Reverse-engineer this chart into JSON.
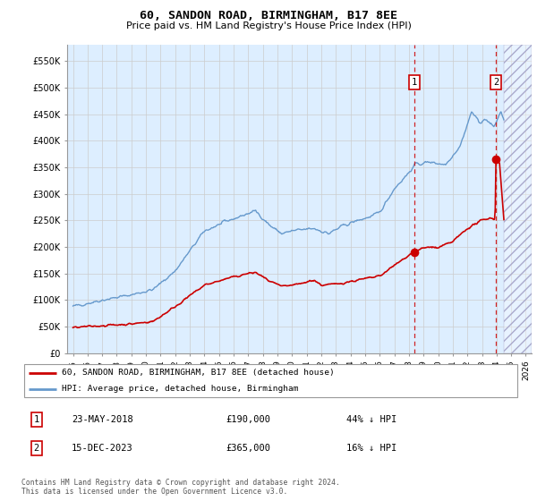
{
  "title": "60, SANDON ROAD, BIRMINGHAM, B17 8EE",
  "subtitle": "Price paid vs. HM Land Registry's House Price Index (HPI)",
  "ylim": [
    0,
    580000
  ],
  "yticks": [
    0,
    50000,
    100000,
    150000,
    200000,
    250000,
    300000,
    350000,
    400000,
    450000,
    500000,
    550000
  ],
  "ytick_labels": [
    "£0",
    "£50K",
    "£100K",
    "£150K",
    "£200K",
    "£250K",
    "£300K",
    "£350K",
    "£400K",
    "£450K",
    "£500K",
    "£550K"
  ],
  "xlim_start": 1994.6,
  "xlim_end": 2026.4,
  "xticks": [
    1995,
    1996,
    1997,
    1998,
    1999,
    2000,
    2001,
    2002,
    2003,
    2004,
    2005,
    2006,
    2007,
    2008,
    2009,
    2010,
    2011,
    2012,
    2013,
    2014,
    2015,
    2016,
    2017,
    2018,
    2019,
    2020,
    2021,
    2022,
    2023,
    2024,
    2025,
    2026
  ],
  "hpi_color": "#6699cc",
  "price_color": "#cc0000",
  "transaction1_date": "23-MAY-2018",
  "transaction1_price": 190000,
  "transaction1_pct": "44% ↓ HPI",
  "transaction1_year": 2018.38,
  "transaction2_date": "15-DEC-2023",
  "transaction2_price": 365000,
  "transaction2_pct": "16% ↓ HPI",
  "transaction2_year": 2023.95,
  "legend_label1": "60, SANDON ROAD, BIRMINGHAM, B17 8EE (detached house)",
  "legend_label2": "HPI: Average price, detached house, Birmingham",
  "footer": "Contains HM Land Registry data © Crown copyright and database right 2024.\nThis data is licensed under the Open Government Licence v3.0.",
  "bg_color": "#ddeeff",
  "hatch_start": 2024.5,
  "grid_color": "#cccccc"
}
